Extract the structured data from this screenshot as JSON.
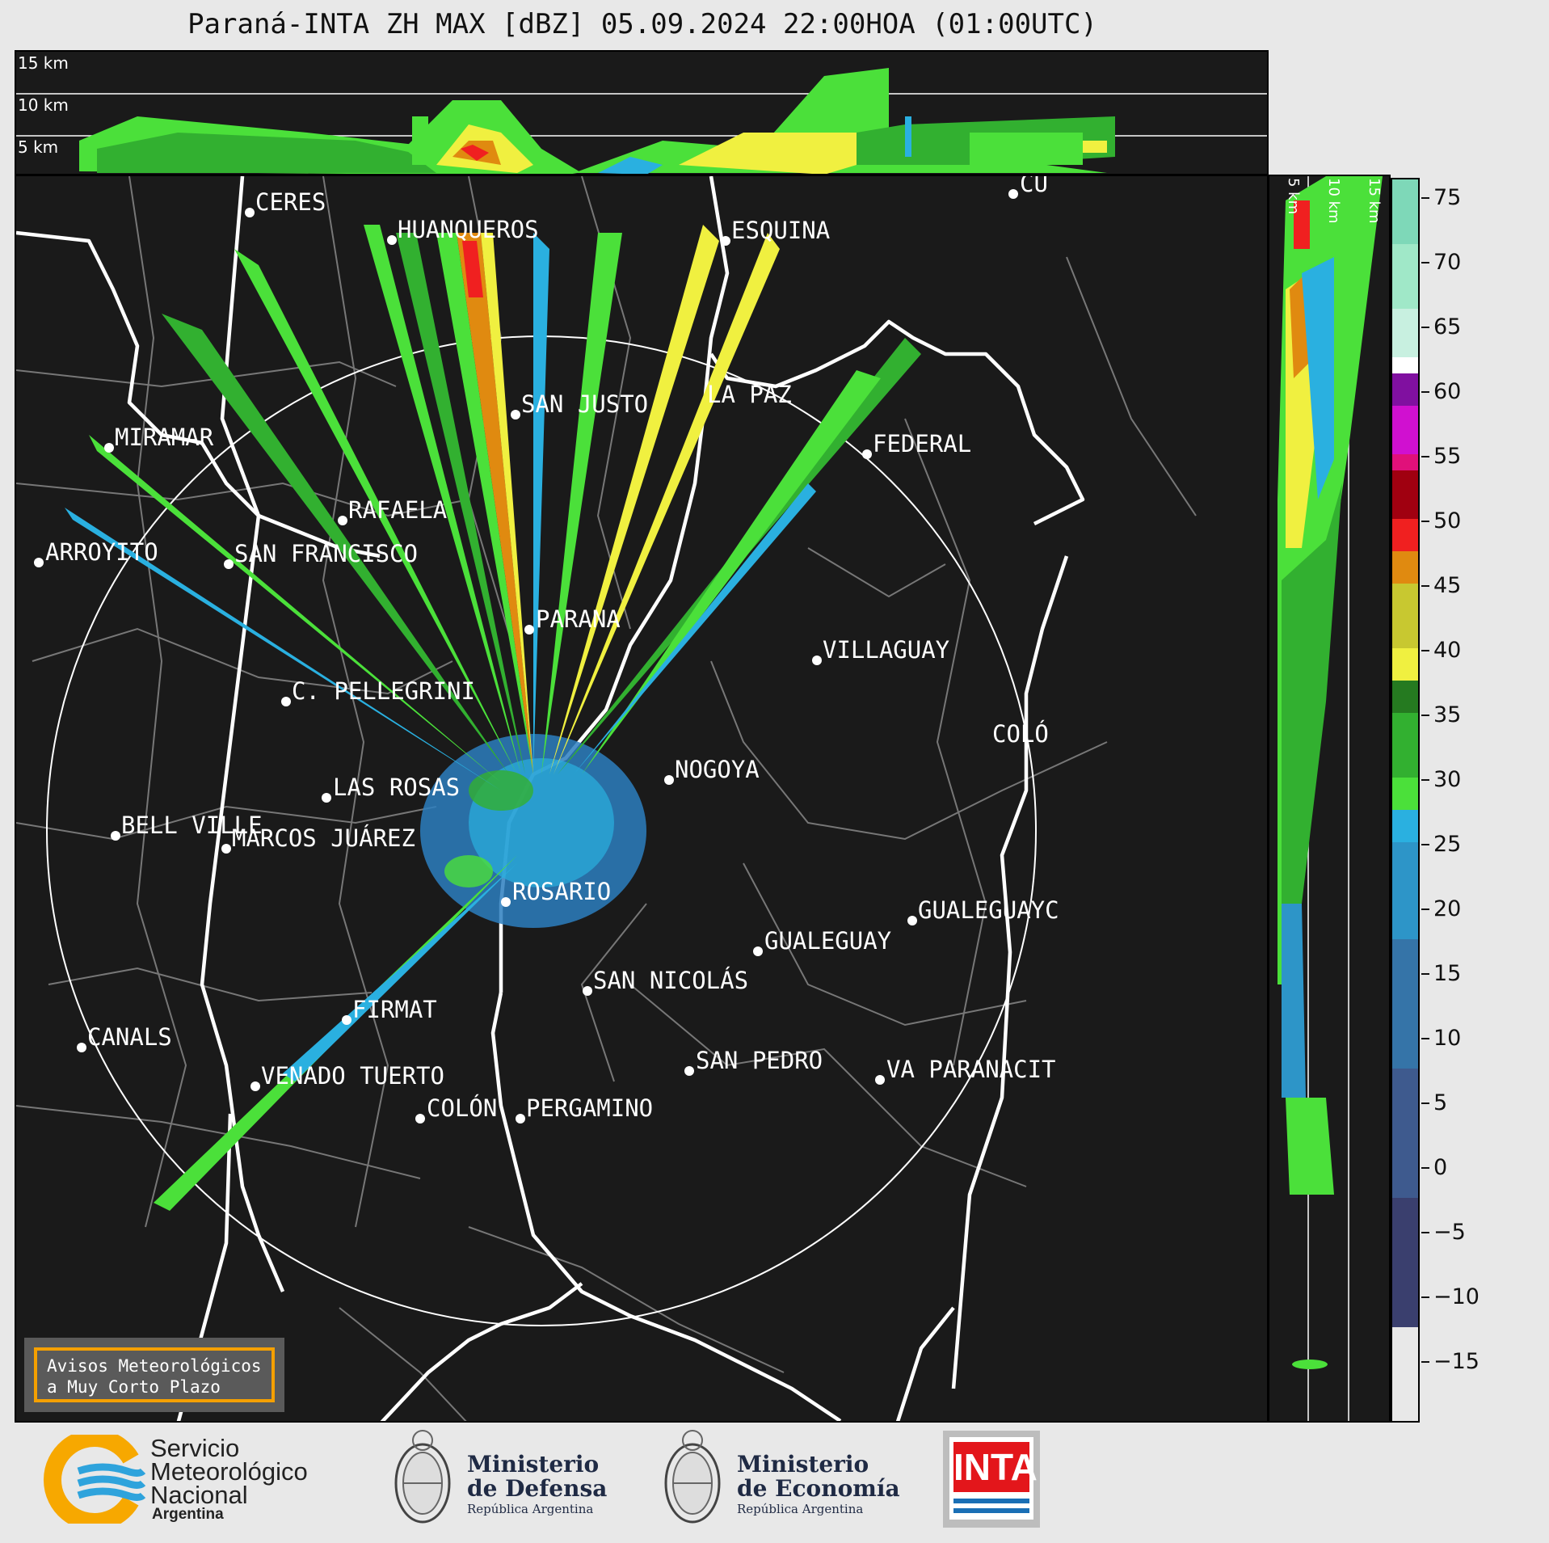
{
  "title": "Paraná-INTA ZH MAX [dBZ] 05.09.2024 22:00HOA (01:00UTC)",
  "top_panel": {
    "height_labels": [
      "15 km",
      "10 km",
      "5 km"
    ]
  },
  "side_panel": {
    "height_labels": [
      "5 km",
      "10 km",
      "15 km"
    ]
  },
  "cities": [
    {
      "name": "CERES"
    },
    {
      "name": "HUANQUEROS"
    },
    {
      "name": "ESQUINA"
    },
    {
      "name": "CU"
    },
    {
      "name": "SAN JUSTO"
    },
    {
      "name": "LA PAZ"
    },
    {
      "name": "FEDERAL"
    },
    {
      "name": "MIRAMAR"
    },
    {
      "name": "RAFAELA"
    },
    {
      "name": "ARROYITO"
    },
    {
      "name": "SAN FRANCISCO"
    },
    {
      "name": "PARANA"
    },
    {
      "name": "VILLAGUAY"
    },
    {
      "name": "C. PELLEGRINI"
    },
    {
      "name": "COLÓ"
    },
    {
      "name": "NOGOYA"
    },
    {
      "name": "LAS ROSAS"
    },
    {
      "name": "BELL VILLE"
    },
    {
      "name": "MARCOS JUÁREZ"
    },
    {
      "name": "ROSARIO"
    },
    {
      "name": "GUALEGUAYC"
    },
    {
      "name": "GUALEGUAY"
    },
    {
      "name": "SAN NICOLÁS"
    },
    {
      "name": "FIRMAT"
    },
    {
      "name": "CANALS"
    },
    {
      "name": "SAN PEDRO"
    },
    {
      "name": "VENADO TUERTO"
    },
    {
      "name": "VA PARANACIT"
    },
    {
      "name": "COLÓN"
    },
    {
      "name": "PERGAMINO"
    }
  ],
  "colorbar": {
    "ticks": [
      "75",
      "70",
      "65",
      "60",
      "55",
      "50",
      "45",
      "40",
      "35",
      "30",
      "25",
      "20",
      "15",
      "10",
      "5",
      "0",
      "−5",
      "−10",
      "−15"
    ],
    "colors": {
      "c_m20": "#3a3f6e",
      "c_m10": "#3e5a8e",
      "c_0": "#3574a8",
      "c_10": "#2d95c8",
      "c_15": "#2ab0e0",
      "c_20": "#4be03a",
      "c_25": "#32b030",
      "c_28": "#257a20",
      "c_30": "#f0f040",
      "c_35": "#c8c830",
      "c_40": "#e08a10",
      "c_42": "#f02020",
      "c_47": "#a00010",
      "c_50": "#e0107a",
      "c_55": "#d010d0",
      "c_58": "#8010a0",
      "c_60": "#ffffff",
      "c_65": "#c8f0e0",
      "c_70": "#a0e8c8",
      "c_75": "#7ed8b8"
    }
  },
  "avisos": {
    "line1": "Avisos Meteorológicos",
    "line2": "a Muy Corto Plazo"
  },
  "logos": {
    "smn": {
      "line1": "Servicio",
      "line2": "Meteorológico",
      "line3": "Nacional",
      "line4": "Argentina"
    },
    "defensa": {
      "line1": "Ministerio",
      "line2": "de Defensa",
      "line3": "República Argentina"
    },
    "economia": {
      "line1": "Ministerio",
      "line2": "de Economía",
      "line3": "República Argentina"
    },
    "inta": {
      "text": "INTA"
    }
  }
}
